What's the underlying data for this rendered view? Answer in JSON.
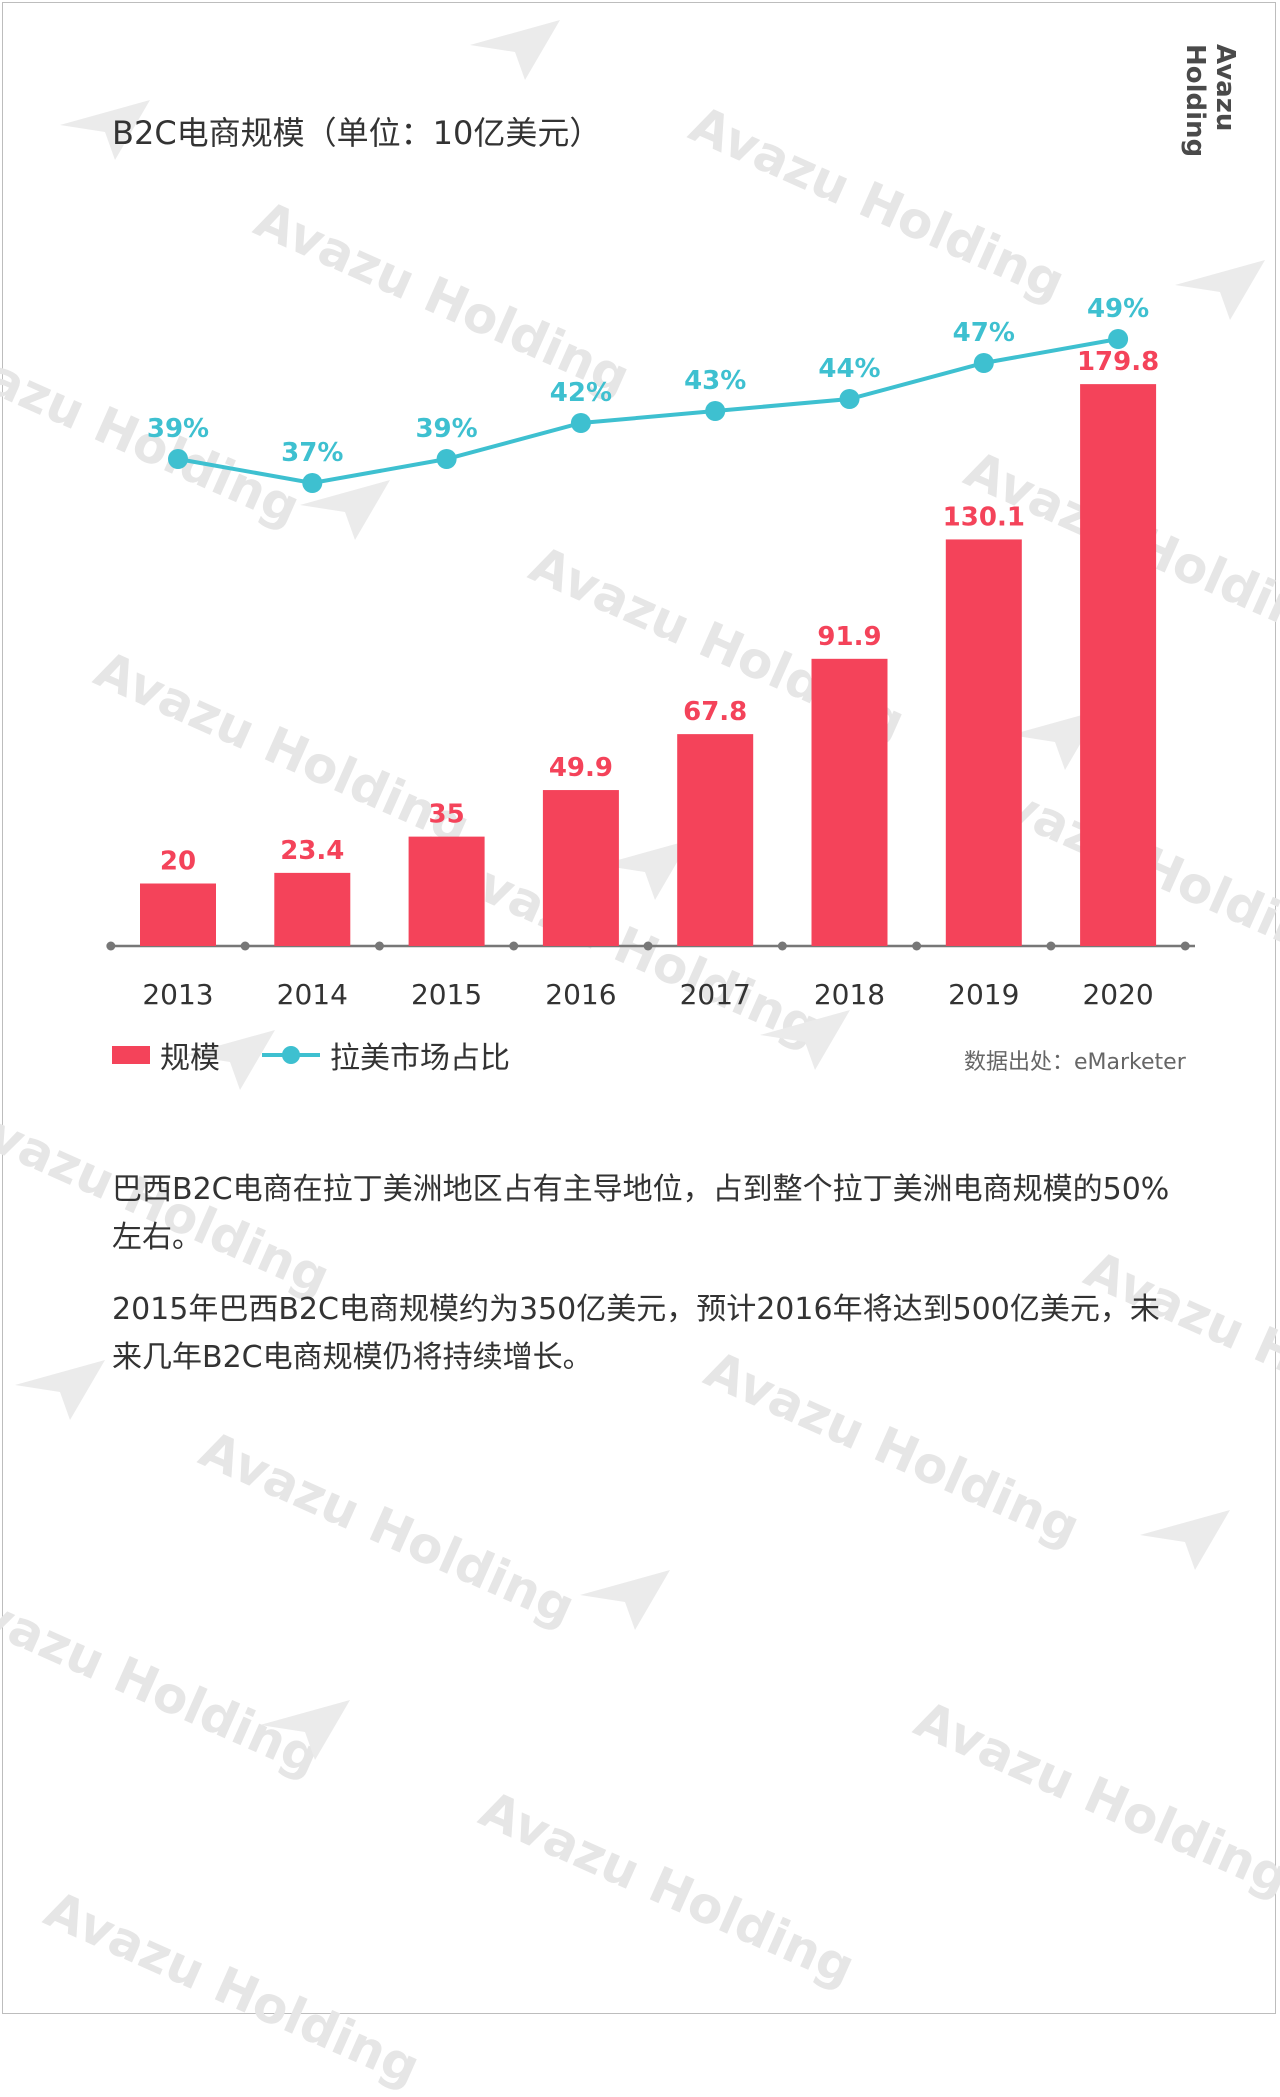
{
  "brand": "Avazu Holding",
  "watermark_text": "Avazu Holding",
  "colors": {
    "bar": "#f4435a",
    "line": "#3ec0d0",
    "axis": "#777777",
    "text": "#333333"
  },
  "chart_data": {
    "type": "bar",
    "title": "B2C电商规模（单位：10亿美元）",
    "categories": [
      "2013",
      "2014",
      "2015",
      "2016",
      "2017",
      "2018",
      "2019",
      "2020"
    ],
    "series": [
      {
        "name": "规模",
        "type": "bar",
        "values": [
          20,
          23.4,
          35,
          49.9,
          67.8,
          91.9,
          130.1,
          179.8
        ],
        "labels": [
          "20",
          "23.4",
          "35",
          "49.9",
          "67.8",
          "91.9",
          "130.1",
          "179.8"
        ]
      },
      {
        "name": "拉美市场占比",
        "type": "line",
        "values": [
          39,
          37,
          39,
          42,
          43,
          44,
          47,
          49
        ],
        "labels": [
          "39%",
          "37%",
          "39%",
          "42%",
          "43%",
          "44%",
          "47%",
          "49%"
        ]
      }
    ],
    "legend_position": "bottom-left",
    "grid": false
  },
  "source": "数据出处：eMarketer",
  "paragraphs": [
    "巴西B2C电商在拉丁美洲地区占有主导地位，占到整个拉丁美洲电商规模的50%左右。",
    "2015年巴西B2C电商规模约为350亿美元，预计2016年将达到500亿美元，未来几年B2C电商规模仍将持续增长。"
  ]
}
